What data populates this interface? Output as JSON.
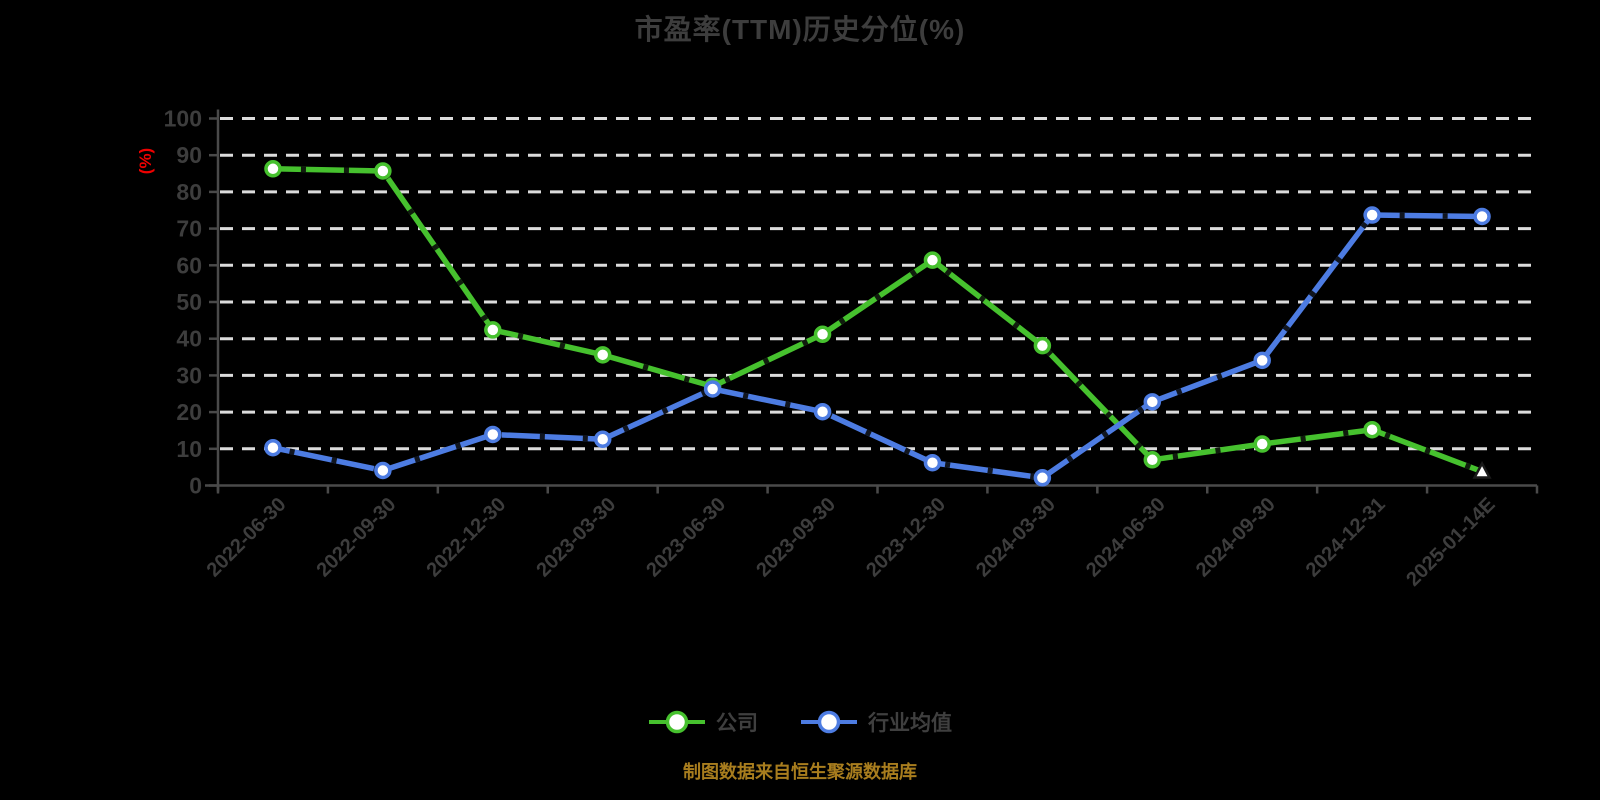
{
  "background": "#000000",
  "title": {
    "text": "市盈率(TTM)历史分位(%)"
  },
  "caption": {
    "text": "制图数据来自恒生聚源数据库"
  },
  "colors": {
    "title": "#3d3d3d",
    "axis": "#4a4a4a",
    "tick_label": "#3d3d3d",
    "grid": "#dcdcdc",
    "y_unit": "#ee0000",
    "legend_label": "#3f3f3f",
    "caption": "#a87d1e",
    "marker_fill": "#ffffff",
    "dash_texture": "#0a0a0a",
    "company": "#46c12e",
    "industry": "#4d7ce2"
  },
  "chart_data": {
    "type": "line",
    "title": "市盈率(TTM)历史分位(%)",
    "xlabel": "",
    "ylabel": "(%)",
    "ylim": [
      0,
      100
    ],
    "yticks": [
      0,
      10,
      20,
      30,
      40,
      50,
      60,
      70,
      80,
      90,
      100
    ],
    "grid": true,
    "grid_style": "dashed",
    "legend_position": "bottom",
    "categories": [
      "2022-06-30",
      "2022-09-30",
      "2022-12-30",
      "2023-03-30",
      "2023-06-30",
      "2023-09-30",
      "2023-12-30",
      "2024-03-30",
      "2024-06-30",
      "2024-09-30",
      "2024-12-31",
      "2025-01-14E"
    ],
    "series": [
      {
        "name": "公司",
        "color": "#46c12e",
        "marker": "circle",
        "end_marker": "triangle",
        "values": [
          86.3,
          85.7,
          42.4,
          35.6,
          27.0,
          41.2,
          61.4,
          38.1,
          7.0,
          11.3,
          15.2,
          3.8
        ]
      },
      {
        "name": "行业均值",
        "color": "#4d7ce2",
        "marker": "circle",
        "end_marker": "circle",
        "values": [
          10.3,
          4.1,
          13.9,
          12.6,
          26.3,
          20.1,
          6.2,
          2.1,
          22.8,
          34.1,
          73.7,
          73.3
        ]
      }
    ]
  }
}
